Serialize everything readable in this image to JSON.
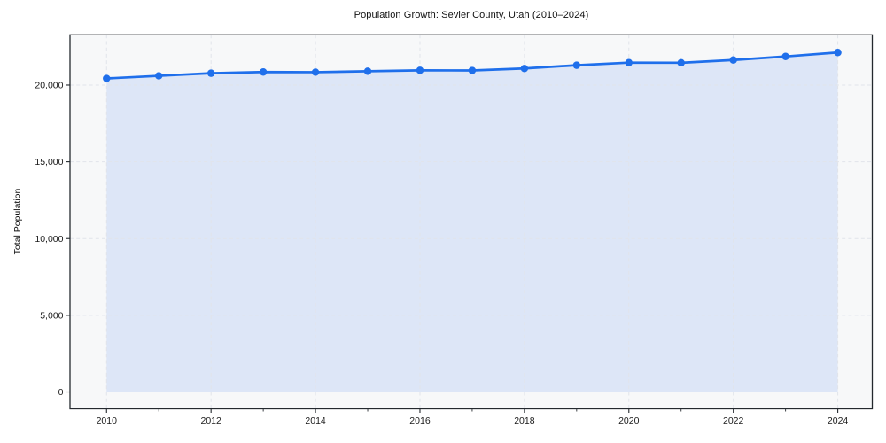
{
  "chart_data": {
    "type": "area",
    "title": "Population Growth: Sevier County, Utah (2010–2024)",
    "xlabel": "",
    "ylabel": "Total Population",
    "series_name": "Total Population",
    "x": [
      2010,
      2011,
      2012,
      2013,
      2014,
      2015,
      2016,
      2017,
      2018,
      2019,
      2020,
      2021,
      2022,
      2023,
      2024
    ],
    "values": [
      20430,
      20600,
      20770,
      20850,
      20840,
      20900,
      20960,
      20950,
      21080,
      21290,
      21460,
      21450,
      21630,
      21860,
      22120
    ],
    "xticks": [
      2010,
      2012,
      2014,
      2016,
      2018,
      2020,
      2022,
      2024
    ],
    "xticks_minor": [
      2011,
      2013,
      2015,
      2017,
      2019,
      2021,
      2023
    ],
    "yticks": [
      0,
      5000,
      10000,
      15000,
      20000
    ],
    "ytick_labels": [
      "0",
      "5,000",
      "10,000",
      "15,000",
      "20,000"
    ],
    "xlim": [
      2009.3,
      2024.66
    ],
    "ylim": [
      -1096,
      23271
    ],
    "grid": true,
    "grid_style": "dashed",
    "legend_position": "none",
    "marker": "circle",
    "colors": {
      "line": "#1f6feb",
      "fill": "#1f6feb",
      "fill_alpha": 0.12,
      "plot_background": "#f7f8f9",
      "figure_background": "#ffffff",
      "gridline": "#e1e4ea",
      "spine": "#24292e",
      "tick_label": "#1a1a1a",
      "title": "#111111"
    }
  }
}
